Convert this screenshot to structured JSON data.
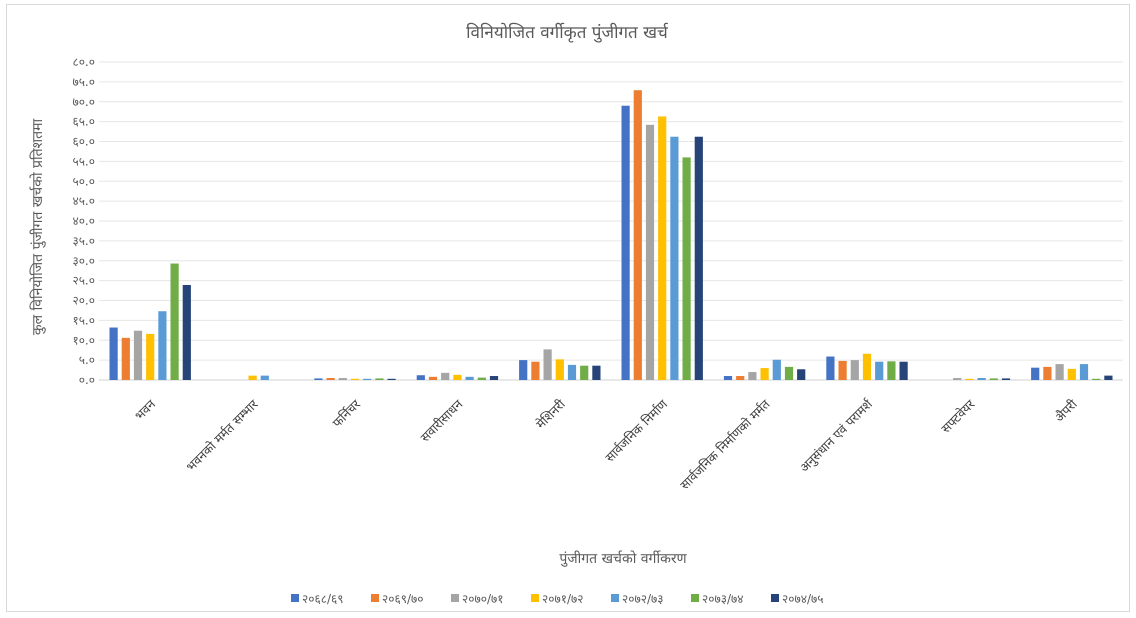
{
  "chart_data": {
    "type": "bar",
    "title": "विनियोजित वर्गीकृत पुंजीगत खर्च",
    "xlabel": "पुंजीगत खर्चको वर्गीकरण",
    "ylabel": "कुल विनियोजित पुंजीगत खर्चको प्रतिशतमा",
    "ylim": [
      0,
      80
    ],
    "yticks": [
      "०.०",
      "५.०",
      "१०.०",
      "१५.०",
      "२०.०",
      "२५.०",
      "३०.०",
      "३५.०",
      "४०.०",
      "४५.०",
      "५०.०",
      "५५.०",
      "६०.०",
      "६५.०",
      "७०.०",
      "७५.०",
      "८०.०"
    ],
    "grid": true,
    "legend_position": "bottom",
    "categories": [
      "भवन",
      "भवनको मर्मत सम्भार",
      "फर्निचर",
      "सवारीसाधन",
      "मेशिनरी",
      "सार्वजनिक निर्माण",
      "सार्वजनिक निर्माणको मर्मत",
      "अनुसंधान एवं परामर्श",
      "सफ्टवेयर",
      "अैपरी"
    ],
    "series": [
      {
        "name": "२०६८/६९",
        "color": "#4472C4",
        "values": [
          13.2,
          0.0,
          0.4,
          1.2,
          5.0,
          69.0,
          1.0,
          5.9,
          0.0,
          3.1
        ]
      },
      {
        "name": "२०६९/७०",
        "color": "#ED7D31",
        "values": [
          10.6,
          0.0,
          0.5,
          0.8,
          4.6,
          72.9,
          1.0,
          4.8,
          0.0,
          3.3
        ]
      },
      {
        "name": "२०७०/७१",
        "color": "#A5A5A5",
        "values": [
          12.4,
          0.0,
          0.5,
          1.8,
          7.7,
          64.2,
          2.0,
          5.0,
          0.5,
          4.0
        ]
      },
      {
        "name": "२०७१/७२",
        "color": "#FFC000",
        "values": [
          11.6,
          1.1,
          0.3,
          1.3,
          5.2,
          66.3,
          3.0,
          6.6,
          0.3,
          2.8
        ]
      },
      {
        "name": "२०७२/७३",
        "color": "#5B9BD5",
        "values": [
          17.3,
          1.1,
          0.3,
          0.8,
          3.8,
          61.2,
          5.1,
          4.6,
          0.5,
          4.0
        ]
      },
      {
        "name": "२०७३/७४",
        "color": "#70AD47",
        "values": [
          29.3,
          0.0,
          0.4,
          0.6,
          3.6,
          56.0,
          3.3,
          4.7,
          0.4,
          0.3
        ]
      },
      {
        "name": "२०७४/७५",
        "color": "#264478",
        "values": [
          23.9,
          0.0,
          0.3,
          1.0,
          3.6,
          61.2,
          2.7,
          4.6,
          0.4,
          1.1
        ]
      }
    ]
  }
}
